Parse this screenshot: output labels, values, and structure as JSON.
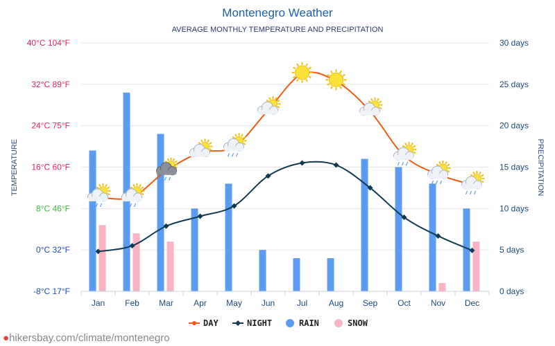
{
  "title": "Montenegro Weather",
  "subtitle": "AVERAGE MONTHLY TEMPERATURE AND PRECIPITATION",
  "source": "hikersbay.com/climate/montenegro",
  "colors": {
    "day": "#f05a14",
    "night": "#0f3a52",
    "rain": "#5b9cf0",
    "snow": "#f8b4c4",
    "title": "#1a5fa8",
    "right_axis": "#1a4a7a"
  },
  "chart_data": {
    "type": "bar",
    "title": "Montenegro Weather",
    "subtitle": "AVERAGE MONTHLY TEMPERATURE AND PRECIPITATION",
    "categories": [
      "Jan",
      "Feb",
      "Mar",
      "Apr",
      "May",
      "Jun",
      "Jul",
      "Aug",
      "Sep",
      "Oct",
      "Nov",
      "Dec"
    ],
    "left_axis": {
      "label": "TEMPERATURE",
      "unit": "°C",
      "ylim": [
        -8,
        40
      ],
      "ticks": [
        {
          "value": 40,
          "label": "40°C 104°F",
          "color": "#e8235a"
        },
        {
          "value": 32,
          "label": "32°C 89°F",
          "color": "#e8235a"
        },
        {
          "value": 24,
          "label": "24°C 75°F",
          "color": "#e8235a"
        },
        {
          "value": 16,
          "label": "16°C 60°F",
          "color": "#e8235a"
        },
        {
          "value": 8,
          "label": "8°C 46°F",
          "color": "#3cb43c"
        },
        {
          "value": 0,
          "label": "0°C 32°F",
          "color": "#1a4ab8"
        },
        {
          "value": -8,
          "label": "-8°C 17°F",
          "color": "#1a4ab8"
        }
      ]
    },
    "right_axis": {
      "label": "PRECIPITATION",
      "unit": "days",
      "ylim": [
        0,
        30
      ],
      "ticks": [
        {
          "value": 30,
          "label": "30 days"
        },
        {
          "value": 25,
          "label": "25 days"
        },
        {
          "value": 20,
          "label": "20 days"
        },
        {
          "value": 15,
          "label": "15 days"
        },
        {
          "value": 10,
          "label": "10 days"
        },
        {
          "value": 5,
          "label": "5 days"
        },
        {
          "value": 0,
          "label": "0 days"
        }
      ]
    },
    "grid": true,
    "legend_position": "bottom",
    "series": [
      {
        "name": "DAY",
        "type": "line",
        "axis": "left",
        "values": [
          10.2,
          10.2,
          15.3,
          18.8,
          19.9,
          27.0,
          34.0,
          32.6,
          26.8,
          18.2,
          14.6,
          12.6
        ]
      },
      {
        "name": "NIGHT",
        "type": "line",
        "axis": "left",
        "values": [
          -0.3,
          0.8,
          4.6,
          6.5,
          8.5,
          14.3,
          16.8,
          16.4,
          12.0,
          6.3,
          2.7,
          -0.1
        ]
      },
      {
        "name": "RAIN",
        "type": "bar",
        "axis": "right",
        "values": [
          17,
          24,
          19,
          10,
          13,
          5,
          4,
          4,
          16,
          15,
          13,
          10
        ]
      },
      {
        "name": "SNOW",
        "type": "bar",
        "axis": "right",
        "values": [
          8,
          7,
          6,
          0,
          0,
          0,
          0,
          0,
          0,
          0,
          1,
          6
        ]
      }
    ],
    "weather_icons": [
      "sun-cloud-rain",
      "sun-cloud-rain",
      "storm-rain",
      "sun-cloud",
      "sun-cloud-rain",
      "sun-cloud",
      "sun",
      "sun",
      "sun-cloud",
      "sun-cloud-rain",
      "sun-cloud-rain",
      "sun-cloud-rain"
    ]
  }
}
